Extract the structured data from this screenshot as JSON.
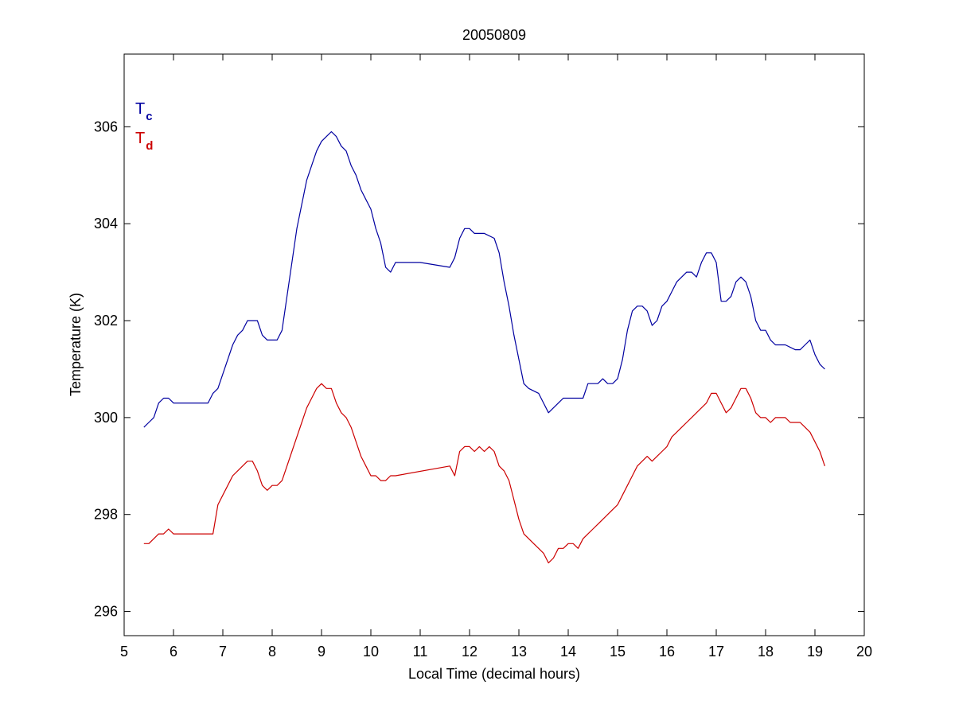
{
  "chart_data": {
    "type": "line",
    "title": "20050809",
    "xlabel": "Local Time (decimal hours)",
    "ylabel": "Temperature (K)",
    "xlim": [
      5,
      20
    ],
    "ylim": [
      295.5,
      307.5
    ],
    "xticks": [
      5,
      6,
      7,
      8,
      9,
      10,
      11,
      12,
      13,
      14,
      15,
      16,
      17,
      18,
      19,
      20
    ],
    "yticks": [
      296,
      298,
      300,
      302,
      304,
      306
    ],
    "grid": false,
    "legend_position": "top-left",
    "legend": [
      {
        "main": "T",
        "sub": "c",
        "color": "#0000a0"
      },
      {
        "main": "T",
        "sub": "d",
        "color": "#cc0000"
      }
    ],
    "series": [
      {
        "label": "Tc",
        "color": "#0000a0",
        "points": [
          [
            5.4,
            299.8
          ],
          [
            5.5,
            299.9
          ],
          [
            5.6,
            300.0
          ],
          [
            5.7,
            300.3
          ],
          [
            5.8,
            300.4
          ],
          [
            5.9,
            300.4
          ],
          [
            6.0,
            300.3
          ],
          [
            6.2,
            300.3
          ],
          [
            6.5,
            300.3
          ],
          [
            6.7,
            300.3
          ],
          [
            6.8,
            300.5
          ],
          [
            6.9,
            300.6
          ],
          [
            7.0,
            300.9
          ],
          [
            7.1,
            301.2
          ],
          [
            7.2,
            301.5
          ],
          [
            7.3,
            301.7
          ],
          [
            7.4,
            301.8
          ],
          [
            7.5,
            302.0
          ],
          [
            7.6,
            302.0
          ],
          [
            7.7,
            302.0
          ],
          [
            7.8,
            301.7
          ],
          [
            7.9,
            301.6
          ],
          [
            8.0,
            301.6
          ],
          [
            8.1,
            301.6
          ],
          [
            8.2,
            301.8
          ],
          [
            8.3,
            302.5
          ],
          [
            8.4,
            303.2
          ],
          [
            8.5,
            303.9
          ],
          [
            8.6,
            304.4
          ],
          [
            8.7,
            304.9
          ],
          [
            8.8,
            305.2
          ],
          [
            8.9,
            305.5
          ],
          [
            9.0,
            305.7
          ],
          [
            9.1,
            305.8
          ],
          [
            9.2,
            305.9
          ],
          [
            9.3,
            305.8
          ],
          [
            9.4,
            305.6
          ],
          [
            9.5,
            305.5
          ],
          [
            9.6,
            305.2
          ],
          [
            9.7,
            305.0
          ],
          [
            9.8,
            304.7
          ],
          [
            9.9,
            304.5
          ],
          [
            10.0,
            304.3
          ],
          [
            10.1,
            303.9
          ],
          [
            10.2,
            303.6
          ],
          [
            10.3,
            303.1
          ],
          [
            10.4,
            303.0
          ],
          [
            10.5,
            303.2
          ],
          [
            11.0,
            303.2
          ],
          [
            11.6,
            303.1
          ],
          [
            11.7,
            303.3
          ],
          [
            11.8,
            303.7
          ],
          [
            11.9,
            303.9
          ],
          [
            12.0,
            303.9
          ],
          [
            12.1,
            303.8
          ],
          [
            12.3,
            303.8
          ],
          [
            12.5,
            303.7
          ],
          [
            12.6,
            303.4
          ],
          [
            12.7,
            302.8
          ],
          [
            12.8,
            302.3
          ],
          [
            12.9,
            301.7
          ],
          [
            13.0,
            301.2
          ],
          [
            13.1,
            300.7
          ],
          [
            13.2,
            300.6
          ],
          [
            13.4,
            300.5
          ],
          [
            13.5,
            300.3
          ],
          [
            13.6,
            300.1
          ],
          [
            13.7,
            300.2
          ],
          [
            13.8,
            300.3
          ],
          [
            13.9,
            300.4
          ],
          [
            14.0,
            300.4
          ],
          [
            14.2,
            300.4
          ],
          [
            14.3,
            300.4
          ],
          [
            14.4,
            300.7
          ],
          [
            14.6,
            300.7
          ],
          [
            14.7,
            300.8
          ],
          [
            14.8,
            300.7
          ],
          [
            14.9,
            300.7
          ],
          [
            15.0,
            300.8
          ],
          [
            15.1,
            301.2
          ],
          [
            15.2,
            301.8
          ],
          [
            15.3,
            302.2
          ],
          [
            15.4,
            302.3
          ],
          [
            15.5,
            302.3
          ],
          [
            15.6,
            302.2
          ],
          [
            15.7,
            301.9
          ],
          [
            15.8,
            302.0
          ],
          [
            15.9,
            302.3
          ],
          [
            16.0,
            302.4
          ],
          [
            16.1,
            302.6
          ],
          [
            16.2,
            302.8
          ],
          [
            16.3,
            302.9
          ],
          [
            16.4,
            303.0
          ],
          [
            16.5,
            303.0
          ],
          [
            16.6,
            302.9
          ],
          [
            16.7,
            303.2
          ],
          [
            16.8,
            303.4
          ],
          [
            16.9,
            303.4
          ],
          [
            17.0,
            303.2
          ],
          [
            17.1,
            302.4
          ],
          [
            17.2,
            302.4
          ],
          [
            17.3,
            302.5
          ],
          [
            17.4,
            302.8
          ],
          [
            17.5,
            302.9
          ],
          [
            17.6,
            302.8
          ],
          [
            17.7,
            302.5
          ],
          [
            17.8,
            302.0
          ],
          [
            17.9,
            301.8
          ],
          [
            18.0,
            301.8
          ],
          [
            18.1,
            301.6
          ],
          [
            18.2,
            301.5
          ],
          [
            18.4,
            301.5
          ],
          [
            18.6,
            301.4
          ],
          [
            18.7,
            301.4
          ],
          [
            18.8,
            301.5
          ],
          [
            18.9,
            301.6
          ],
          [
            19.0,
            301.3
          ],
          [
            19.1,
            301.1
          ],
          [
            19.2,
            301.0
          ]
        ]
      },
      {
        "label": "Td",
        "color": "#cc0000",
        "points": [
          [
            5.4,
            297.4
          ],
          [
            5.5,
            297.4
          ],
          [
            5.6,
            297.5
          ],
          [
            5.7,
            297.6
          ],
          [
            5.8,
            297.6
          ],
          [
            5.9,
            297.7
          ],
          [
            6.0,
            297.6
          ],
          [
            6.3,
            297.6
          ],
          [
            6.6,
            297.6
          ],
          [
            6.8,
            297.6
          ],
          [
            6.9,
            298.2
          ],
          [
            7.0,
            298.4
          ],
          [
            7.1,
            298.6
          ],
          [
            7.2,
            298.8
          ],
          [
            7.3,
            298.9
          ],
          [
            7.4,
            299.0
          ],
          [
            7.5,
            299.1
          ],
          [
            7.6,
            299.1
          ],
          [
            7.7,
            298.9
          ],
          [
            7.8,
            298.6
          ],
          [
            7.9,
            298.5
          ],
          [
            8.0,
            298.6
          ],
          [
            8.1,
            298.6
          ],
          [
            8.2,
            298.7
          ],
          [
            8.3,
            299.0
          ],
          [
            8.4,
            299.3
          ],
          [
            8.5,
            299.6
          ],
          [
            8.6,
            299.9
          ],
          [
            8.7,
            300.2
          ],
          [
            8.8,
            300.4
          ],
          [
            8.9,
            300.6
          ],
          [
            9.0,
            300.7
          ],
          [
            9.1,
            300.6
          ],
          [
            9.2,
            300.6
          ],
          [
            9.3,
            300.3
          ],
          [
            9.4,
            300.1
          ],
          [
            9.5,
            300.0
          ],
          [
            9.6,
            299.8
          ],
          [
            9.7,
            299.5
          ],
          [
            9.8,
            299.2
          ],
          [
            9.9,
            299.0
          ],
          [
            10.0,
            298.8
          ],
          [
            10.1,
            298.8
          ],
          [
            10.2,
            298.7
          ],
          [
            10.3,
            298.7
          ],
          [
            10.4,
            298.8
          ],
          [
            10.5,
            298.8
          ],
          [
            11.6,
            299.0
          ],
          [
            11.7,
            298.8
          ],
          [
            11.8,
            299.3
          ],
          [
            11.9,
            299.4
          ],
          [
            12.0,
            299.4
          ],
          [
            12.1,
            299.3
          ],
          [
            12.2,
            299.4
          ],
          [
            12.3,
            299.3
          ],
          [
            12.4,
            299.4
          ],
          [
            12.5,
            299.3
          ],
          [
            12.6,
            299.0
          ],
          [
            12.7,
            298.9
          ],
          [
            12.8,
            298.7
          ],
          [
            12.9,
            298.3
          ],
          [
            13.0,
            297.9
          ],
          [
            13.1,
            297.6
          ],
          [
            13.2,
            297.5
          ],
          [
            13.3,
            297.4
          ],
          [
            13.4,
            297.3
          ],
          [
            13.5,
            297.2
          ],
          [
            13.6,
            297.0
          ],
          [
            13.7,
            297.1
          ],
          [
            13.8,
            297.3
          ],
          [
            13.9,
            297.3
          ],
          [
            14.0,
            297.4
          ],
          [
            14.1,
            297.4
          ],
          [
            14.2,
            297.3
          ],
          [
            14.3,
            297.5
          ],
          [
            14.4,
            297.6
          ],
          [
            14.5,
            297.7
          ],
          [
            14.6,
            297.8
          ],
          [
            14.7,
            297.9
          ],
          [
            14.8,
            298.0
          ],
          [
            14.9,
            298.1
          ],
          [
            15.0,
            298.2
          ],
          [
            15.1,
            298.4
          ],
          [
            15.2,
            298.6
          ],
          [
            15.3,
            298.8
          ],
          [
            15.4,
            299.0
          ],
          [
            15.5,
            299.1
          ],
          [
            15.6,
            299.2
          ],
          [
            15.7,
            299.1
          ],
          [
            15.8,
            299.2
          ],
          [
            15.9,
            299.3
          ],
          [
            16.0,
            299.4
          ],
          [
            16.1,
            299.6
          ],
          [
            16.2,
            299.7
          ],
          [
            16.3,
            299.8
          ],
          [
            16.4,
            299.9
          ],
          [
            16.5,
            300.0
          ],
          [
            16.6,
            300.1
          ],
          [
            16.7,
            300.2
          ],
          [
            16.8,
            300.3
          ],
          [
            16.9,
            300.5
          ],
          [
            17.0,
            300.5
          ],
          [
            17.1,
            300.3
          ],
          [
            17.2,
            300.1
          ],
          [
            17.3,
            300.2
          ],
          [
            17.4,
            300.4
          ],
          [
            17.5,
            300.6
          ],
          [
            17.6,
            300.6
          ],
          [
            17.7,
            300.4
          ],
          [
            17.8,
            300.1
          ],
          [
            17.9,
            300.0
          ],
          [
            18.0,
            300.0
          ],
          [
            18.1,
            299.9
          ],
          [
            18.2,
            300.0
          ],
          [
            18.3,
            300.0
          ],
          [
            18.4,
            300.0
          ],
          [
            18.5,
            299.9
          ],
          [
            18.6,
            299.9
          ],
          [
            18.7,
            299.9
          ],
          [
            18.8,
            299.8
          ],
          [
            18.9,
            299.7
          ],
          [
            19.0,
            299.5
          ],
          [
            19.1,
            299.3
          ],
          [
            19.2,
            299.0
          ]
        ]
      }
    ]
  }
}
